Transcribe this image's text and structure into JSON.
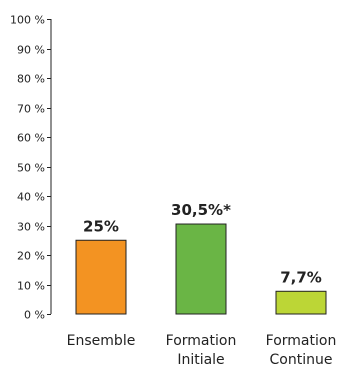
{
  "chart_data": {
    "type": "bar",
    "title": "",
    "xlabel": "",
    "ylabel": "",
    "ylim": [
      0,
      100
    ],
    "y_ticks": [
      {
        "value": 0,
        "label": "0 %"
      },
      {
        "value": 10,
        "label": "10 %"
      },
      {
        "value": 20,
        "label": "20 %"
      },
      {
        "value": 30,
        "label": "30 %"
      },
      {
        "value": 40,
        "label": "40 %"
      },
      {
        "value": 50,
        "label": "50 %"
      },
      {
        "value": 60,
        "label": "60 %"
      },
      {
        "value": 70,
        "label": "70 %"
      },
      {
        "value": 80,
        "label": "80 %"
      },
      {
        "value": 90,
        "label": "90 %"
      },
      {
        "value": 100,
        "label": "100 %"
      }
    ],
    "categories": [
      [
        "Ensemble"
      ],
      [
        "Formation",
        "Initiale"
      ],
      [
        "Formation",
        "Continue"
      ]
    ],
    "values": [
      25,
      30.5,
      7.7
    ],
    "data_labels": [
      "25%",
      "30,5%*",
      "7,7%"
    ],
    "colors": [
      "#f39322",
      "#6ab545",
      "#bcd636"
    ],
    "grid": false,
    "legend": "none"
  }
}
